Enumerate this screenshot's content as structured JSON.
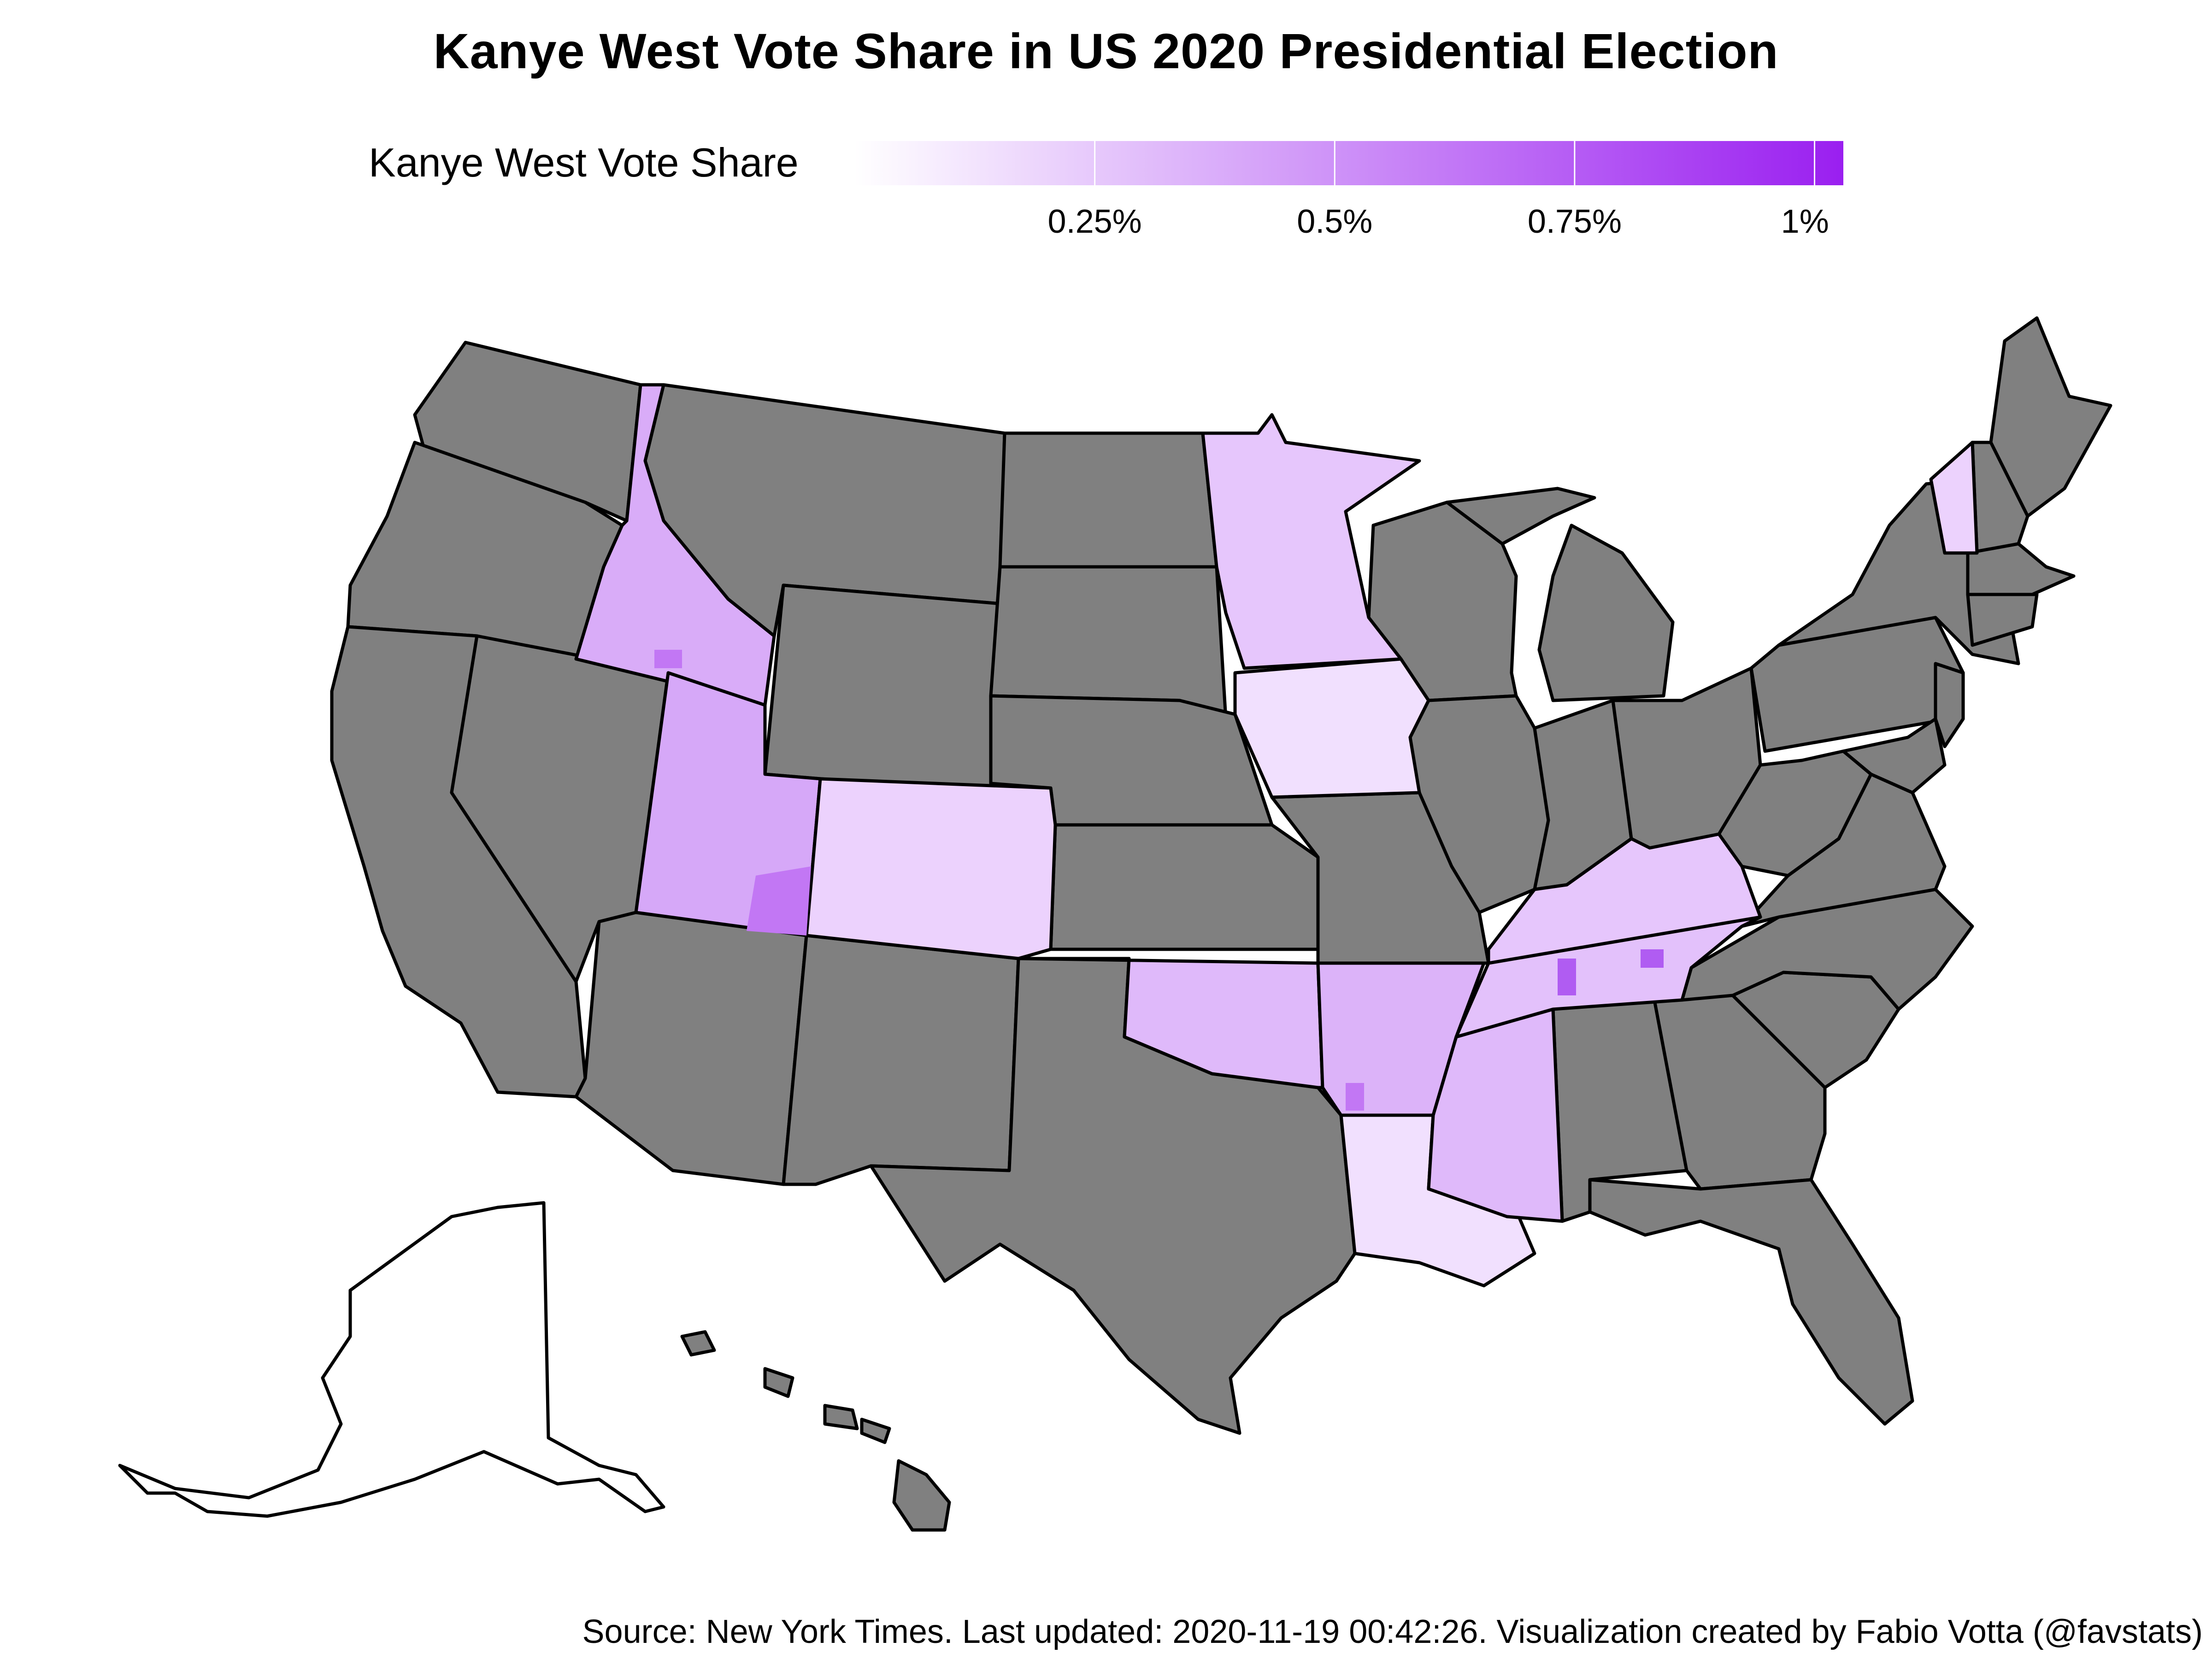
{
  "title": "Kanye West Vote Share in US 2020 Presidential Election",
  "legend": {
    "label": "Kanye West Vote Share",
    "low_color": "#ffffff",
    "high_color": "#9a1ff0",
    "ticks": [
      {
        "value": 0.25,
        "label": "0.25%"
      },
      {
        "value": 0.5,
        "label": "0.5%"
      },
      {
        "value": 0.75,
        "label": "0.75%"
      },
      {
        "value": 1.0,
        "label": "1%"
      }
    ],
    "range": [
      0,
      1.03
    ]
  },
  "colors": {
    "no_data_fill": "#808080",
    "border": "#000000",
    "light_fill": "#eed6fd",
    "mid_fill": "#d9acf8",
    "dark_fill": "#c277f4"
  },
  "states_with_data": [
    "Idaho",
    "Utah",
    "Colorado",
    "Minnesota",
    "Iowa",
    "Oklahoma",
    "Arkansas",
    "Louisiana",
    "Mississippi",
    "Tennessee",
    "Kentucky",
    "Vermont"
  ],
  "caption": "Source: New York Times. Last updated: 2020-11-19 00:42:26. Visualization created by Fabio Votta (@favstats)"
}
